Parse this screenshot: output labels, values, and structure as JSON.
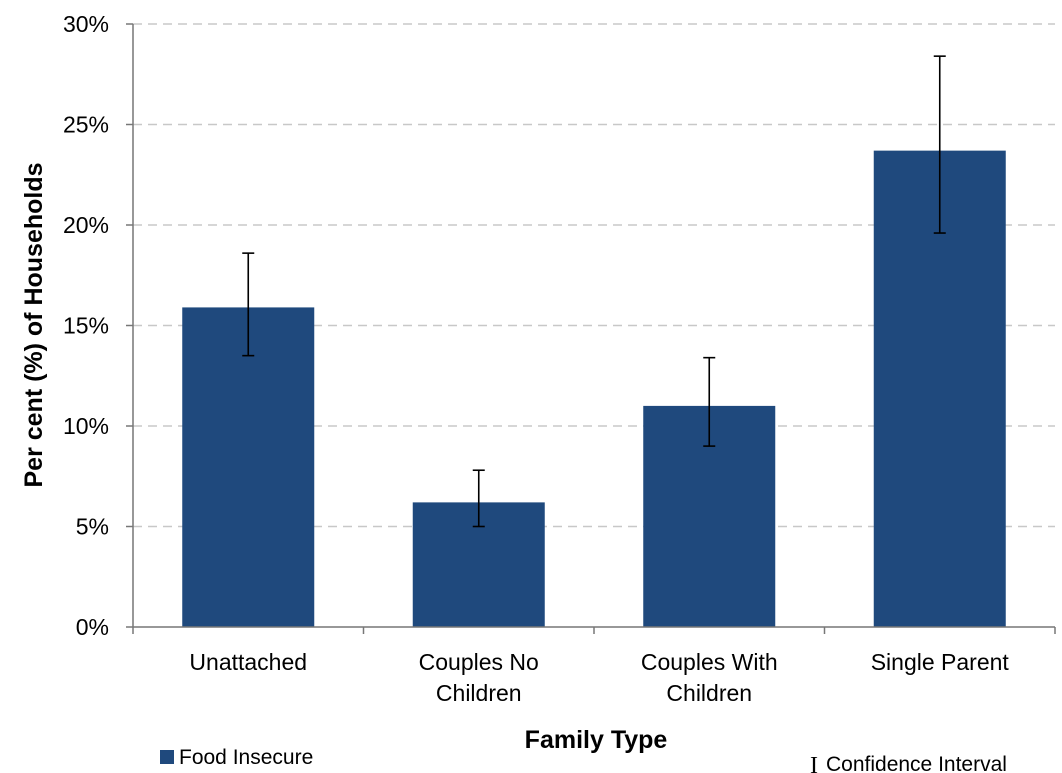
{
  "chart_data": {
    "type": "bar",
    "title": "",
    "xlabel": "Family Type",
    "ylabel": "Per cent (%) of Households",
    "categories": [
      [
        "Unattached"
      ],
      [
        "Couples No",
        "Children"
      ],
      [
        "Couples With",
        "Children"
      ],
      [
        "Single Parent"
      ]
    ],
    "series": [
      {
        "name": "Food Insecure",
        "color": "#1F497D",
        "values": [
          15.9,
          6.2,
          11.0,
          23.7
        ],
        "ci_low": [
          13.5,
          5.0,
          9.0,
          19.6
        ],
        "ci_high": [
          18.6,
          7.8,
          13.4,
          28.4
        ]
      }
    ],
    "ylim": [
      0,
      30
    ],
    "yticks": [
      0,
      5,
      10,
      15,
      20,
      25,
      30
    ],
    "ytick_suffix": "%",
    "grid": true,
    "legend": {
      "series_label": "Food Insecure",
      "ci_symbol": "I",
      "ci_label": "Confidence Interval",
      "placement": "bottom"
    }
  }
}
